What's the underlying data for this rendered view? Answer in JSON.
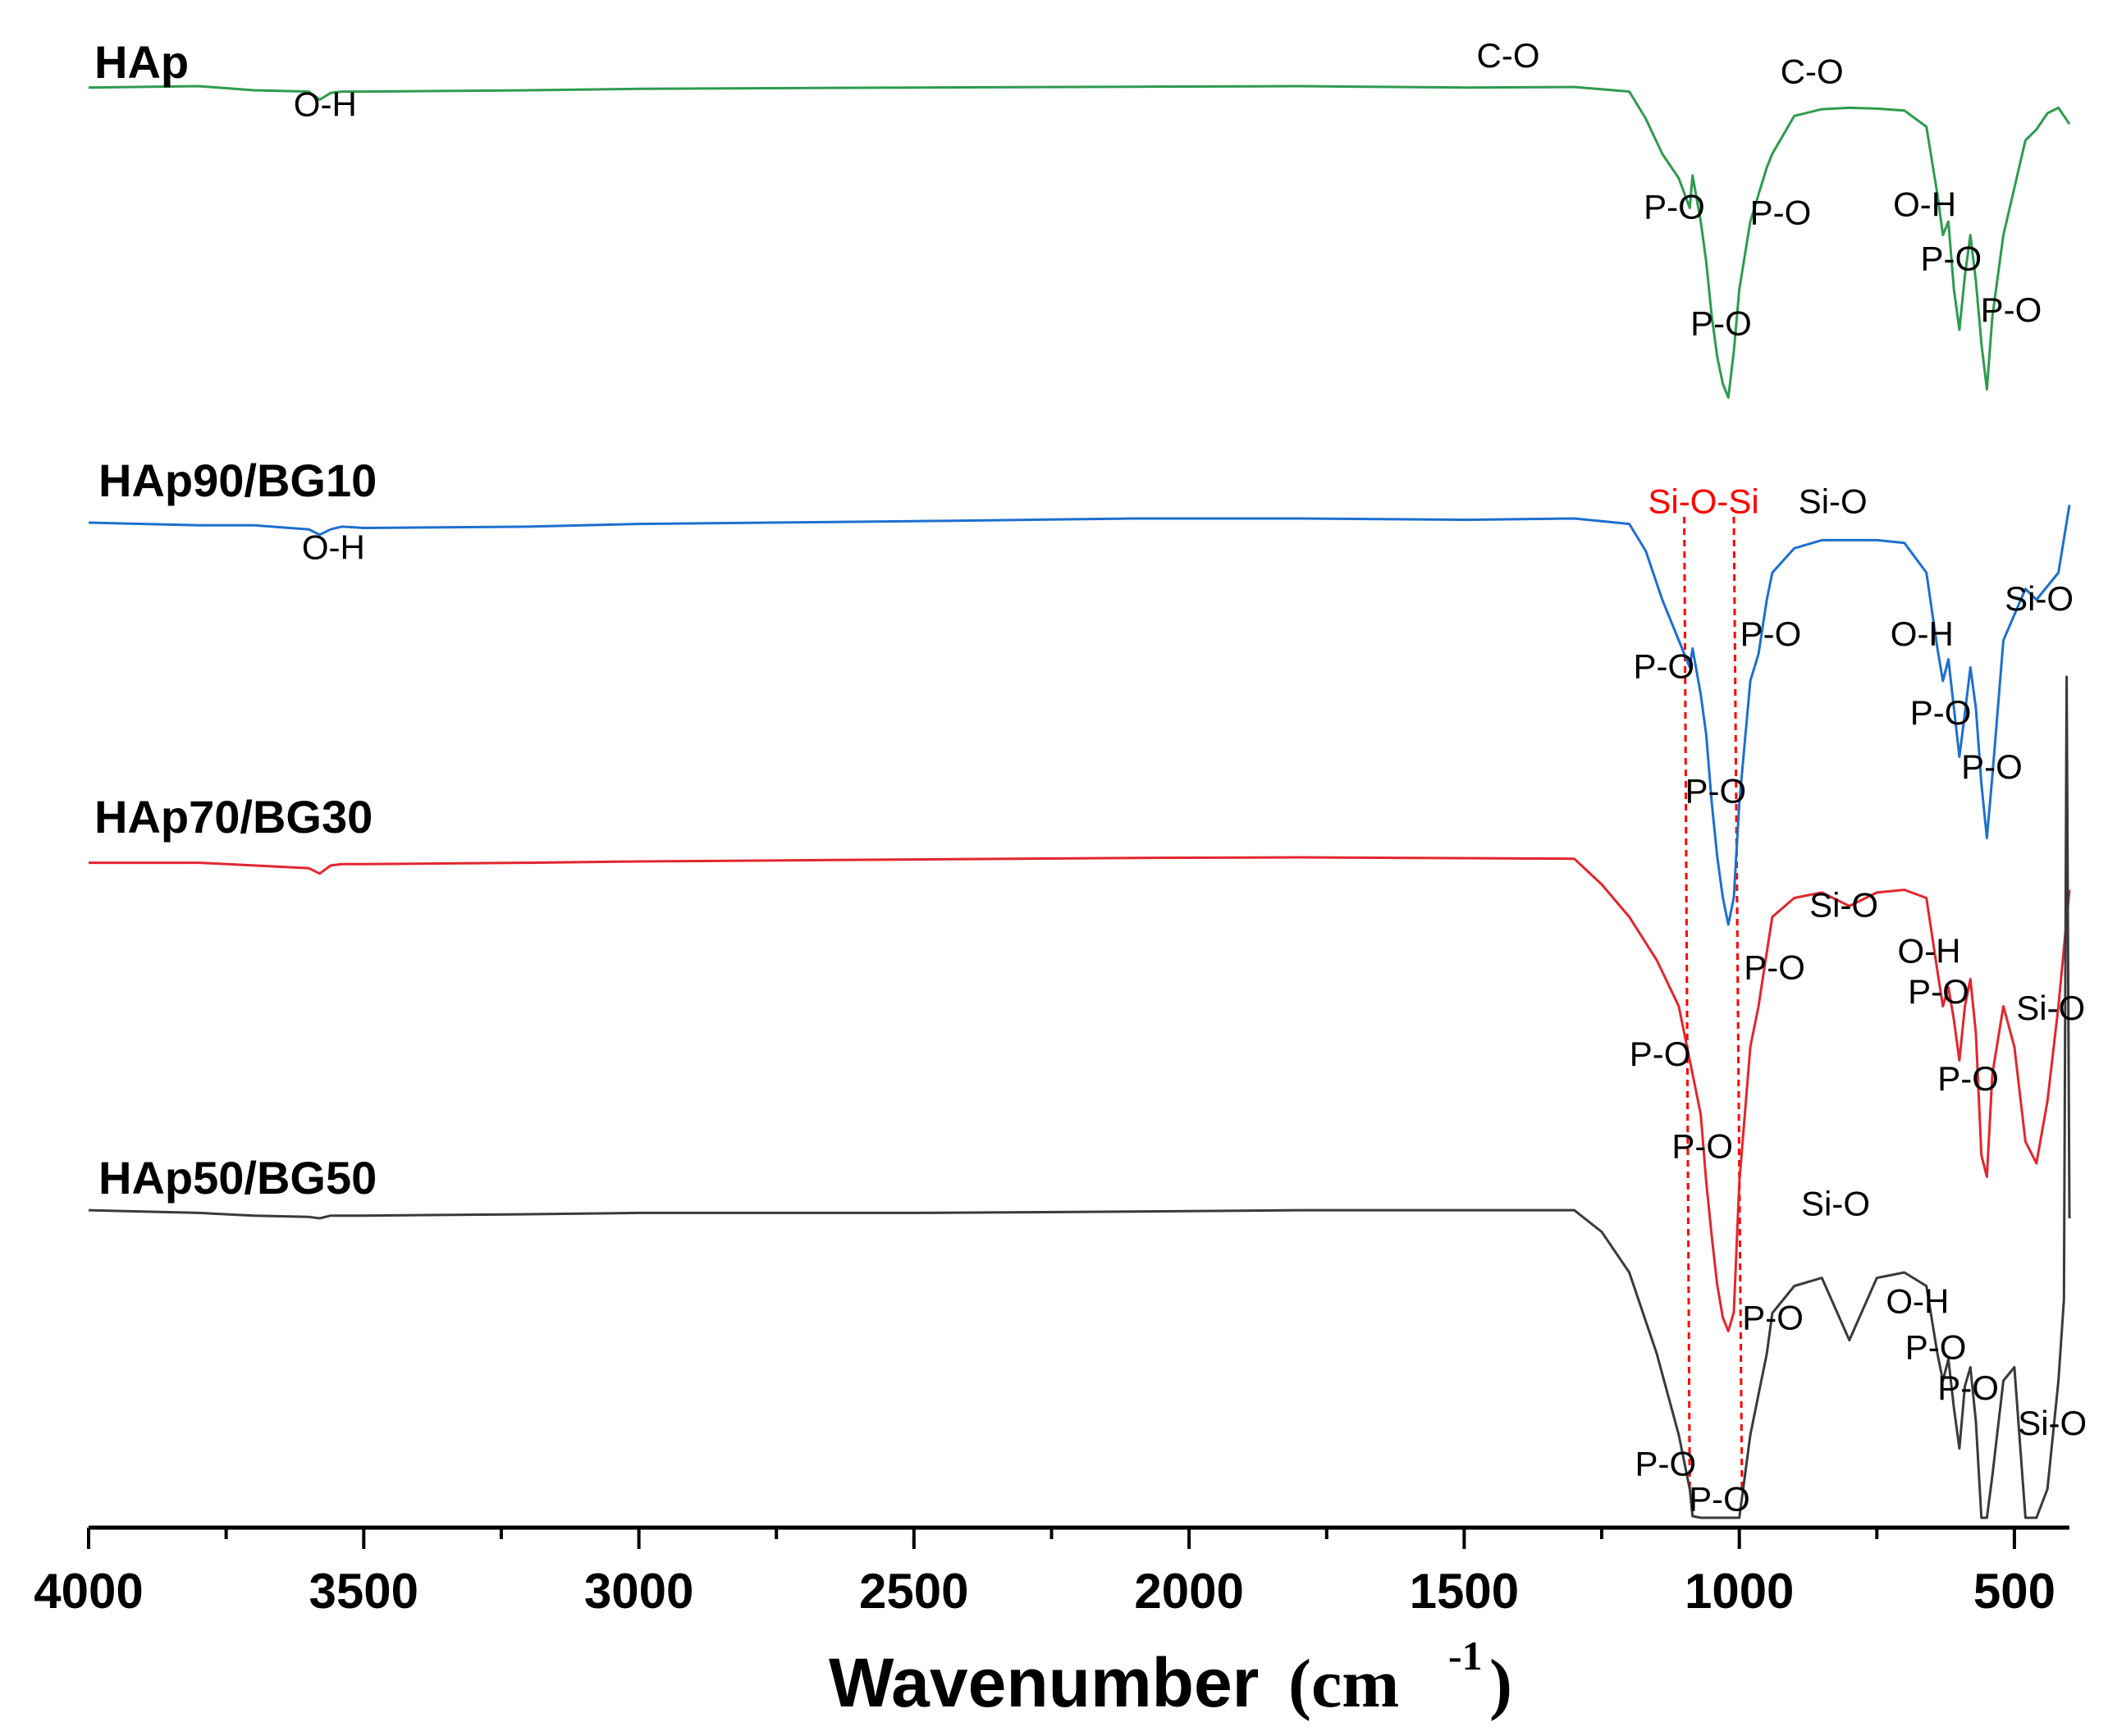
{
  "chart_data": {
    "type": "line",
    "title": "",
    "xlabel": "Wavenumber",
    "xlabel_unit": "cm",
    "xlabel_unit_exp": "-1",
    "ylabel": "",
    "xlim": [
      4000,
      400
    ],
    "x_reversed": true,
    "x_ticks": [
      4000,
      3500,
      3000,
      2500,
      2000,
      1500,
      1000,
      500
    ],
    "x_tick_labels": [
      "4000",
      "3500",
      "3000",
      "2500",
      "2000",
      "1500",
      "1000",
      "500"
    ],
    "y_axis_visible": false,
    "note": "FTIR transmittance spectra, vertically offset (arbitrary units: 0 = top of each trace, larger = deeper absorption)",
    "series": [
      {
        "name": "HAp",
        "color": "#2e9b4e",
        "x": [
          4000,
          3800,
          3700,
          3600,
          3580,
          3560,
          3540,
          3500,
          3200,
          3000,
          2500,
          2100,
          1800,
          1500,
          1300,
          1200,
          1170,
          1140,
          1110,
          1090,
          1085,
          1070,
          1060,
          1050,
          1040,
          1030,
          1020,
          1010,
          1000,
          980,
          965,
          950,
          940,
          900,
          850,
          800,
          750,
          700,
          660,
          640,
          630,
          620,
          610,
          600,
          590,
          580,
          570,
          560,
          550,
          540,
          520,
          480,
          460,
          440,
          420,
          400
        ],
        "y": [
          0.5,
          0.0,
          1.5,
          2.0,
          5.0,
          2.5,
          2.0,
          2.0,
          1.5,
          1.0,
          0.5,
          0.2,
          0.0,
          0.5,
          0.3,
          2.0,
          12.0,
          25.0,
          34.0,
          45.0,
          33.0,
          50.0,
          65.0,
          85.0,
          100.0,
          110.0,
          115.0,
          98.0,
          75.0,
          50.0,
          40.0,
          30.0,
          25.0,
          11.0,
          8.5,
          8.0,
          8.3,
          9.0,
          15.0,
          40.0,
          55.0,
          50.0,
          75.0,
          90.0,
          70.0,
          55.0,
          72.0,
          95.0,
          112.0,
          85.0,
          55.0,
          20.0,
          16.0,
          10.0,
          8.0,
          14.0
        ]
      },
      {
        "name": "HAp90/BG10",
        "color": "#1e6fcf",
        "x": [
          4000,
          3800,
          3700,
          3600,
          3580,
          3560,
          3540,
          3500,
          3200,
          3000,
          2500,
          2100,
          1800,
          1500,
          1300,
          1200,
          1170,
          1140,
          1110,
          1090,
          1085,
          1070,
          1060,
          1050,
          1040,
          1030,
          1020,
          1010,
          1000,
          980,
          965,
          950,
          940,
          900,
          850,
          800,
          750,
          700,
          660,
          640,
          630,
          620,
          610,
          600,
          590,
          580,
          570,
          560,
          550,
          540,
          520,
          480,
          460,
          440,
          420,
          400
        ],
        "y": [
          1.5,
          2.5,
          2.5,
          4.0,
          6.0,
          4.0,
          3.0,
          3.5,
          3.0,
          2.0,
          1.0,
          0.0,
          0.0,
          0.5,
          0.0,
          2.0,
          12.0,
          30.0,
          45.0,
          55.0,
          48.0,
          65.0,
          80.0,
          105.0,
          125.0,
          140.0,
          150.0,
          140.0,
          105.0,
          60.0,
          50.0,
          30.0,
          20.0,
          11.0,
          8.0,
          8.0,
          8.0,
          9.0,
          20.0,
          48.0,
          60.0,
          52.0,
          70.0,
          88.0,
          72.0,
          55.0,
          70.0,
          98.0,
          118.0,
          95.0,
          45.0,
          26.0,
          30.0,
          25.0,
          20.0,
          -5.0
        ]
      },
      {
        "name": "HAp70/BG30",
        "color": "#e2262e",
        "x": [
          4000,
          3800,
          3700,
          3600,
          3580,
          3560,
          3540,
          3500,
          3200,
          3000,
          2500,
          2100,
          1800,
          1500,
          1300,
          1250,
          1200,
          1150,
          1110,
          1090,
          1085,
          1070,
          1060,
          1050,
          1040,
          1030,
          1020,
          1010,
          1000,
          980,
          965,
          950,
          940,
          900,
          850,
          800,
          750,
          700,
          660,
          640,
          630,
          620,
          610,
          600,
          590,
          580,
          570,
          560,
          550,
          540,
          520,
          500,
          480,
          460,
          440,
          420,
          400
        ],
        "y": [
          2.0,
          2.0,
          3.0,
          4.0,
          6.0,
          3.0,
          2.5,
          2.5,
          2.0,
          1.5,
          0.8,
          0.2,
          0.0,
          0.3,
          0.5,
          10.0,
          22.0,
          38.0,
          55.0,
          75.0,
          80.0,
          95.0,
          120.0,
          140.0,
          158.0,
          170.0,
          175.0,
          168.0,
          120.0,
          70.0,
          55.0,
          35.0,
          22.0,
          15.0,
          13.0,
          18.0,
          13.0,
          12.0,
          15.0,
          42.0,
          55.0,
          48.0,
          60.0,
          75.0,
          55.0,
          45.0,
          65.0,
          110.0,
          118.0,
          80.0,
          55.0,
          70.0,
          105.0,
          113.0,
          90.0,
          55.0,
          12.0
        ]
      },
      {
        "name": "HAp50/BG50",
        "color": "#3a3a3a",
        "x": [
          4000,
          3800,
          3700,
          3600,
          3580,
          3560,
          3540,
          3500,
          3200,
          3000,
          2500,
          2100,
          1800,
          1500,
          1300,
          1250,
          1200,
          1150,
          1110,
          1090,
          1085,
          1070,
          1060,
          1050,
          1040,
          1030,
          1020,
          1010,
          1000,
          980,
          965,
          950,
          940,
          900,
          850,
          800,
          750,
          700,
          660,
          640,
          630,
          620,
          610,
          600,
          590,
          580,
          570,
          560,
          550,
          540,
          520,
          500,
          480,
          460,
          440,
          420,
          410,
          405,
          400
        ],
        "y": [
          -3.0,
          -2.0,
          -1.0,
          -0.5,
          0.0,
          -1.0,
          -1.0,
          -1.0,
          -1.5,
          -2.0,
          -2.0,
          -2.5,
          -3.0,
          -3.0,
          -3.0,
          5.0,
          20.0,
          50.0,
          80.0,
          100.0,
          110.0,
          120.0,
          140.0,
          160.0,
          175.0,
          185.0,
          190.0,
          180.0,
          130.0,
          80.0,
          65.0,
          50.0,
          35.0,
          25.0,
          22.0,
          45.0,
          22.0,
          20.0,
          25.0,
          50.0,
          60.0,
          52.0,
          70.0,
          85.0,
          62.0,
          55.0,
          75.0,
          120.0,
          130.0,
          95.0,
          60.0,
          55.0,
          120.0,
          140.0,
          100.0,
          60.0,
          30.0,
          -200.0,
          0.0
        ]
      }
    ],
    "annotations": [
      {
        "series": "HAp",
        "text": "O-H",
        "x": 3570,
        "depth": 11.0,
        "color": "#000000"
      },
      {
        "series": "HAp",
        "text": "C-O",
        "x": 1420,
        "depth": -7.0,
        "color": "#000000"
      },
      {
        "series": "HAp",
        "text": "C-O",
        "x": 868,
        "depth": -1.0,
        "color": "#000000"
      },
      {
        "series": "HAp",
        "text": "P-O",
        "x": 1118,
        "depth": 49.0,
        "color": "#000000"
      },
      {
        "series": "HAp",
        "text": "P-O",
        "x": 925,
        "depth": 51.0,
        "color": "#000000"
      },
      {
        "series": "HAp",
        "text": "O-H",
        "x": 663,
        "depth": 48.0,
        "color": "#000000"
      },
      {
        "series": "HAp",
        "text": "P-O",
        "x": 615,
        "depth": 68.0,
        "color": "#000000"
      },
      {
        "series": "HAp",
        "text": "P-O",
        "x": 1033,
        "depth": 92.0,
        "color": "#000000"
      },
      {
        "series": "HAp",
        "text": "P-O",
        "x": 506,
        "depth": 87.0,
        "color": "#000000"
      },
      {
        "series": "HAp90/BG10",
        "text": "O-H",
        "x": 3555,
        "depth": 15.0,
        "color": "#000000"
      },
      {
        "series": "HAp90/BG10",
        "text": "Si-O-Si",
        "x": 1065,
        "depth": -2.0,
        "color": "#ff0000"
      },
      {
        "series": "HAp90/BG10",
        "text": "Si-O",
        "x": 830,
        "depth": -2.0,
        "color": "#000000"
      },
      {
        "series": "HAp90/BG10",
        "text": "Si-O",
        "x": 455,
        "depth": 34.0,
        "color": "#000000"
      },
      {
        "series": "HAp90/BG10",
        "text": "P-O",
        "x": 943,
        "depth": 47.0,
        "color": "#000000"
      },
      {
        "series": "HAp90/BG10",
        "text": "O-H",
        "x": 668,
        "depth": 47.0,
        "color": "#000000"
      },
      {
        "series": "HAp90/BG10",
        "text": "P-O",
        "x": 1137,
        "depth": 59.0,
        "color": "#000000"
      },
      {
        "series": "HAp90/BG10",
        "text": "P-O",
        "x": 634,
        "depth": 76.0,
        "color": "#000000"
      },
      {
        "series": "HAp90/BG10",
        "text": "P-O",
        "x": 1043,
        "depth": 105.0,
        "color": "#000000"
      },
      {
        "series": "HAp90/BG10",
        "text": "P-O",
        "x": 541,
        "depth": 96.0,
        "color": "#000000"
      },
      {
        "series": "HAp70/BG30",
        "text": "Si-O",
        "x": 810,
        "depth": 22.0,
        "color": "#000000"
      },
      {
        "series": "HAp70/BG30",
        "text": "O-H",
        "x": 655,
        "depth": 39.0,
        "color": "#000000"
      },
      {
        "series": "HAp70/BG30",
        "text": "P-O",
        "x": 936,
        "depth": 45.0,
        "color": "#000000"
      },
      {
        "series": "HAp70/BG30",
        "text": "P-O",
        "x": 638,
        "depth": 54.0,
        "color": "#000000"
      },
      {
        "series": "HAp70/BG30",
        "text": "Si-O",
        "x": 434,
        "depth": 60.0,
        "color": "#000000"
      },
      {
        "series": "HAp70/BG30",
        "text": "P-O",
        "x": 1144,
        "depth": 77.0,
        "color": "#000000"
      },
      {
        "series": "HAp70/BG30",
        "text": "P-O",
        "x": 584,
        "depth": 86.0,
        "color": "#000000"
      },
      {
        "series": "HAp70/BG30",
        "text": "P-O",
        "x": 1067,
        "depth": 111.0,
        "color": "#000000"
      },
      {
        "series": "HAp50/BG50",
        "text": "Si-O",
        "x": 825,
        "depth": -1.0,
        "color": "#000000"
      },
      {
        "series": "HAp50/BG50",
        "text": "O-H",
        "x": 676,
        "depth": 35.0,
        "color": "#000000"
      },
      {
        "series": "HAp50/BG50",
        "text": "P-O",
        "x": 939,
        "depth": 41.0,
        "color": "#000000"
      },
      {
        "series": "HAp50/BG50",
        "text": "P-O",
        "x": 643,
        "depth": 52.0,
        "color": "#000000"
      },
      {
        "series": "HAp50/BG50",
        "text": "P-O",
        "x": 584,
        "depth": 67.0,
        "color": "#000000"
      },
      {
        "series": "HAp50/BG50",
        "text": "Si-O",
        "x": 431,
        "depth": 80.0,
        "color": "#000000"
      },
      {
        "series": "HAp50/BG50",
        "text": "P-O",
        "x": 1134,
        "depth": 95.0,
        "color": "#000000"
      },
      {
        "series": "HAp50/BG50",
        "text": "P-O",
        "x": 1036,
        "depth": 108.0,
        "color": "#000000"
      }
    ],
    "reference_lines": [
      {
        "x1": 1100,
        "x2": 1090,
        "color": "#ff0000",
        "style": "dashed",
        "label": "Si-O-Si"
      },
      {
        "x1": 1010,
        "x2": 995,
        "color": "#ff0000",
        "style": "dashed",
        "label": "Si-O-Si"
      }
    ]
  }
}
